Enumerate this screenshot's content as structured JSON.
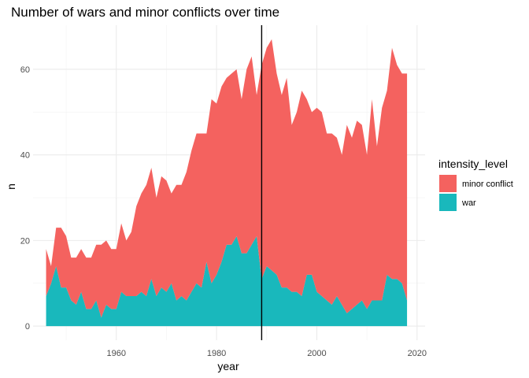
{
  "chart_data": {
    "type": "area",
    "stacked": true,
    "title": "Number of wars and minor conflicts over time",
    "xlabel": "year",
    "ylabel": "n",
    "xlim": [
      1946,
      2018
    ],
    "ylim": [
      0,
      67
    ],
    "x_ticks": [
      1960,
      1980,
      2000,
      2020
    ],
    "y_ticks": [
      0,
      20,
      40,
      60
    ],
    "grid": true,
    "legend": {
      "title": "intensity_level",
      "position": "right"
    },
    "vline": {
      "x": 1989,
      "color": "#000000"
    },
    "x": [
      1946,
      1947,
      1948,
      1949,
      1950,
      1951,
      1952,
      1953,
      1954,
      1955,
      1956,
      1957,
      1958,
      1959,
      1960,
      1961,
      1962,
      1963,
      1964,
      1965,
      1966,
      1967,
      1968,
      1969,
      1970,
      1971,
      1972,
      1973,
      1974,
      1975,
      1976,
      1977,
      1978,
      1979,
      1980,
      1981,
      1982,
      1983,
      1984,
      1985,
      1986,
      1987,
      1988,
      1989,
      1990,
      1991,
      1992,
      1993,
      1994,
      1995,
      1996,
      1997,
      1998,
      1999,
      2000,
      2001,
      2002,
      2003,
      2004,
      2005,
      2006,
      2007,
      2008,
      2009,
      2010,
      2011,
      2012,
      2013,
      2014,
      2015,
      2016,
      2017,
      2018
    ],
    "series": [
      {
        "name": "war",
        "color": "#19B8BC",
        "values": [
          7,
          10,
          14,
          9,
          9,
          6,
          5,
          8,
          4,
          4,
          6,
          2,
          5,
          4,
          4,
          8,
          7,
          7,
          7,
          8,
          7,
          11,
          7,
          9,
          8,
          10,
          6,
          7,
          6,
          8,
          10,
          9,
          15,
          10,
          12,
          15,
          19,
          19,
          21,
          17,
          17,
          19,
          21,
          11,
          14,
          13,
          12,
          9,
          9,
          8,
          8,
          7,
          12,
          12,
          8,
          7,
          6,
          5,
          7,
          5,
          3,
          4,
          5,
          6,
          4,
          6,
          6,
          6,
          12,
          11,
          11,
          10,
          6
        ]
      },
      {
        "name": "minor conflict",
        "color": "#F4625F",
        "values": [
          11,
          4,
          9,
          14,
          12,
          10,
          11,
          10,
          12,
          12,
          13,
          17,
          15,
          14,
          14,
          16,
          13,
          15,
          21,
          23,
          26,
          26,
          23,
          26,
          26,
          21,
          27,
          26,
          30,
          33,
          35,
          36,
          30,
          43,
          40,
          41,
          39,
          40,
          39,
          36,
          43,
          44,
          33,
          50,
          51,
          54,
          47,
          45,
          49,
          39,
          42,
          48,
          41,
          38,
          43,
          43,
          39,
          40,
          37,
          35,
          44,
          40,
          43,
          41,
          36,
          47,
          36,
          45,
          43,
          54,
          50,
          49,
          53
        ]
      }
    ]
  }
}
